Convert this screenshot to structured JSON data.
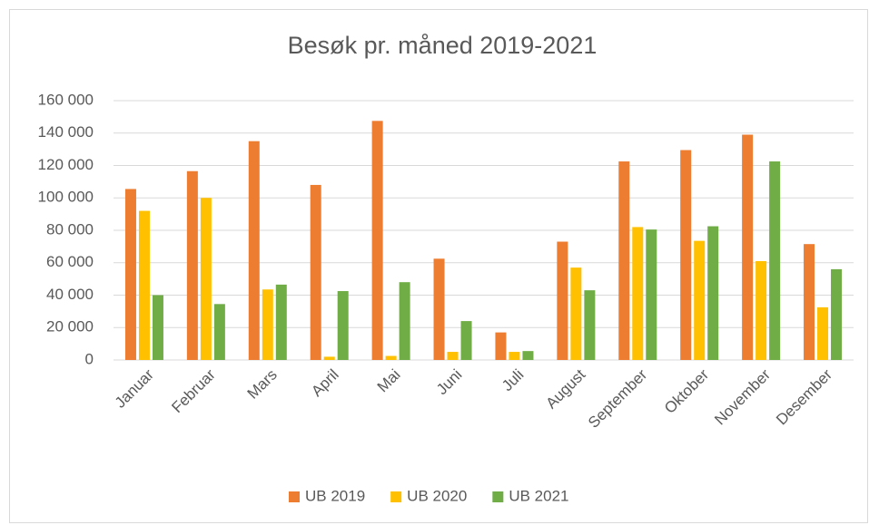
{
  "chart_data": {
    "type": "bar",
    "title": "Besøk pr. måned 2019-2021",
    "categories": [
      "Januar",
      "Februar",
      "Mars",
      "April",
      "Mai",
      "Juni",
      "Juli",
      "August",
      "September",
      "Oktober",
      "November",
      "Desember"
    ],
    "series": [
      {
        "name": "UB 2019",
        "color": "#ed7d31",
        "values": [
          105500,
          116500,
          135000,
          108000,
          147500,
          62500,
          17000,
          73000,
          122500,
          129500,
          139000,
          71500
        ]
      },
      {
        "name": "UB 2020",
        "color": "#ffc000",
        "values": [
          92000,
          100000,
          43500,
          2000,
          2500,
          5000,
          5000,
          57000,
          82000,
          73500,
          61000,
          32500
        ]
      },
      {
        "name": "UB 2021",
        "color": "#70ad47",
        "values": [
          40000,
          34500,
          46500,
          42500,
          48000,
          24000,
          5500,
          43000,
          80500,
          82500,
          122500,
          56000
        ]
      }
    ],
    "ylim": [
      0,
      160000
    ],
    "yticks": [
      0,
      {
        "value": 20000,
        "label": "20 000"
      },
      {
        "value": 40000,
        "label": "40 000"
      },
      {
        "value": 60000,
        "label": "60 000"
      },
      {
        "value": 80000,
        "label": "80 000"
      },
      {
        "value": 100000,
        "label": "100 000"
      },
      {
        "value": 120000,
        "label": "120 000"
      },
      {
        "value": 140000,
        "label": "140 000"
      },
      {
        "value": 160000,
        "label": "160 000"
      }
    ],
    "grid": true,
    "legend": "bottom"
  }
}
